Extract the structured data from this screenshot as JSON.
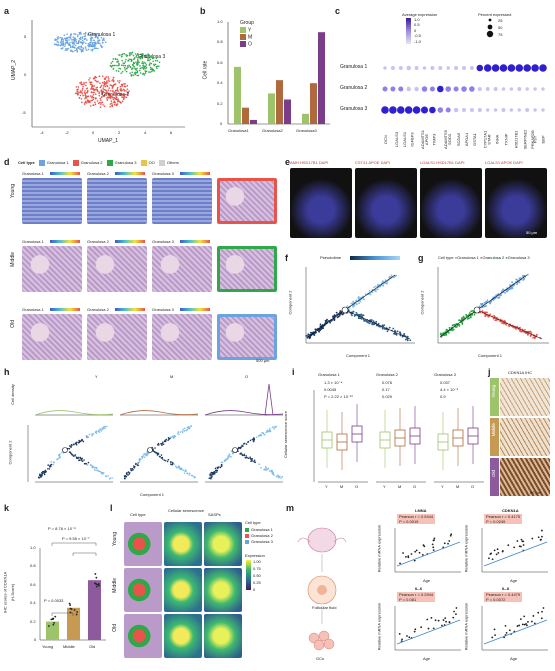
{
  "panel_labels": [
    "a",
    "b",
    "c",
    "d",
    "e",
    "f",
    "g",
    "h",
    "i",
    "j",
    "k",
    "l",
    "m"
  ],
  "colors": {
    "granulosa1": "#6aa3e0",
    "granulosa2": "#e8534b",
    "granulosa3": "#2fa84a",
    "Y": "#9dc46a",
    "M": "#b0693c",
    "O": "#7a3d8a"
  },
  "a": {
    "clusters": [
      "Granulosa 1",
      "Granulosa 2",
      "Granulosa 3"
    ],
    "xlabel": "UMAP_1",
    "ylabel": "UMAP_2",
    "xticks": [
      "-4",
      "-2",
      "0",
      "2",
      "4",
      "6"
    ],
    "yticks": [
      "5",
      "0",
      "-5"
    ]
  },
  "b": {
    "chart_data": {
      "type": "bar",
      "categories": [
        "Granulosa1",
        "Granulosa2",
        "Granulosa3"
      ],
      "series": [
        {
          "name": "Y",
          "values": [
            0.56,
            0.3,
            0.1
          ]
        },
        {
          "name": "M",
          "values": [
            0.16,
            0.43,
            0.4
          ]
        },
        {
          "name": "O",
          "values": [
            0.04,
            0.24,
            0.9
          ]
        }
      ],
      "ylabel": "Cell rate",
      "legend_title": "Group",
      "ylim": [
        0,
        1.0
      ],
      "yticks": [
        "0",
        "0.2",
        "0.4",
        "0.6",
        "0.8",
        "1.0"
      ]
    }
  },
  "c": {
    "legend_title_avg": "Average expression",
    "avg_ticks": [
      "1.0",
      "0.5",
      "0",
      "-0.5",
      "-1.0"
    ],
    "legend_title_pct": "Percent expressed",
    "pct_ticks": [
      "25",
      "50",
      "75"
    ],
    "rows": [
      "Granulosa 1",
      "Granulosa 2",
      "Granulosa 3"
    ],
    "genes": [
      "DCN",
      "LGALS3",
      "LGALS1",
      "IGFBP3",
      "ADAMTS1",
      "APOE",
      "TIMP3",
      "ADAMTS5",
      "SOD3",
      "SCDA5",
      "APOA1",
      "GSTA1",
      "CYP17A1",
      "STAR",
      "INHA",
      "TXNIP",
      "HSD17B1",
      "SERPINE2",
      "PRKAR2B",
      "FST",
      "EBP"
    ]
  },
  "d": {
    "legend_title": "Cell type",
    "legend_items": [
      "Granulosa 1",
      "Granulosa 2",
      "Granulosa 3",
      "OO",
      "Others"
    ],
    "legend_colors": [
      "#6aa3e0",
      "#e8534b",
      "#2fa84a",
      "#e6c54a",
      "#cfcfcf"
    ],
    "row_labels": [
      "Young",
      "Middle",
      "Old"
    ],
    "col_labels": [
      "Granulosa 1",
      "Granulosa 2",
      "Granulosa 3"
    ],
    "scale_ticks": "0.25 0.5 0.75 1.0",
    "scalebar": "500 μm"
  },
  "e": {
    "titles": [
      "AMH HSD17B1 DAPI",
      "CST41 APOE DAPI",
      "LGALS1 HSD17B1 DAPI",
      "LGALS1 APOE DAPI"
    ],
    "scalebar": "50 μm"
  },
  "f": {
    "legend": "Pseudotime",
    "legend_ticks": [
      "0",
      "10",
      "20",
      "30",
      "40"
    ],
    "xlabel": "Component 1",
    "ylabel": "Component 2",
    "xticks": [
      "-10",
      "0",
      "10",
      "20",
      "30",
      "40"
    ]
  },
  "g": {
    "legend_title": "Cell type",
    "legend_items": [
      "Granulosa 1",
      "Granulosa 2",
      "Granulosa 3"
    ],
    "xlabel": "Component 1",
    "ylabel": "Component 2",
    "xticks": [
      "-10",
      "0",
      "10",
      "20",
      "30",
      "40"
    ]
  },
  "h": {
    "groups": [
      "Y",
      "M",
      "O"
    ],
    "top_ylabel": "Cell density",
    "xlabel": "Component 1",
    "ylabel": "Component 2",
    "xticks": [
      "-10",
      "0",
      "10",
      "20",
      "30",
      "40"
    ]
  },
  "i": {
    "ylabel": "Cellular senescence score",
    "groups": [
      "Granulosa 1",
      "Granulosa 2",
      "Granulosa 3"
    ],
    "xcats": [
      "Y",
      "M",
      "O"
    ],
    "pvalues": [
      [
        "1.3 × 10⁻⁴",
        "0.0045",
        "P = 2.22 × 10⁻¹⁶"
      ],
      [
        "0.076",
        "0.17",
        "0.029"
      ],
      [
        "0.037",
        "4.4 × 10⁻⁵",
        "0.9"
      ]
    ]
  },
  "j": {
    "title": "CDKN1A IHC",
    "rows": [
      "Young",
      "Middle",
      "Old"
    ],
    "scalebar": "50 μm"
  },
  "k": {
    "ylabel": "IHC scores of CDKN1A",
    "ylabel2": "(H-Score)",
    "chart_data": {
      "type": "bar",
      "categories": [
        "Young",
        "Middle",
        "Old"
      ],
      "values": [
        0.2,
        0.35,
        0.65
      ],
      "ylim": [
        0,
        1.0
      ],
      "yticks": [
        "0",
        "0.2",
        "0.4",
        "0.6",
        "0.8",
        "1.0"
      ]
    },
    "pvals": [
      "P = 8.76 × 10⁻⁸",
      "P = 9.55 × 10⁻⁷",
      "P = 0.0033"
    ]
  },
  "l": {
    "col_titles": [
      "Cell type",
      "Cellular senescence",
      "SASPs"
    ],
    "row_labels": [
      "Young",
      "Middle",
      "Old"
    ],
    "legend_title": "Cell type",
    "legend_items": [
      "Granulosa 1",
      "Granulosa 2",
      "Granulosa 3"
    ],
    "expr_title": "Expression",
    "expr_ticks": [
      "1.00",
      "0.75",
      "0.50",
      "0.25",
      "0"
    ]
  },
  "m": {
    "diagram_labels": [
      "Follicular fluid",
      "GCs"
    ],
    "plots": [
      {
        "title": "LMNA",
        "stat": "Pearson r = 0.5444",
        "p": "P = 0.0019",
        "ylabel": "Relative mRNA expression",
        "xlabel": "Age"
      },
      {
        "title": "CDKN1A",
        "stat": "Pearson r = 0.4175",
        "p": "P = 0.0249",
        "ylabel": "Relative mRNA expression",
        "xlabel": "Age"
      },
      {
        "title": "IL-6",
        "stat": "Pearson r = 0.2944",
        "p": "P = 0.081",
        "ylabel": "Relative mRNA expression",
        "xlabel": "Age"
      },
      {
        "title": "IL-8",
        "stat": "Pearson r = 0.4479",
        "p": "P = 0.0072",
        "ylabel": "Relative mRNA expression",
        "xlabel": "Age"
      }
    ],
    "xticks": [
      "20",
      "30",
      "40",
      "50"
    ]
  }
}
